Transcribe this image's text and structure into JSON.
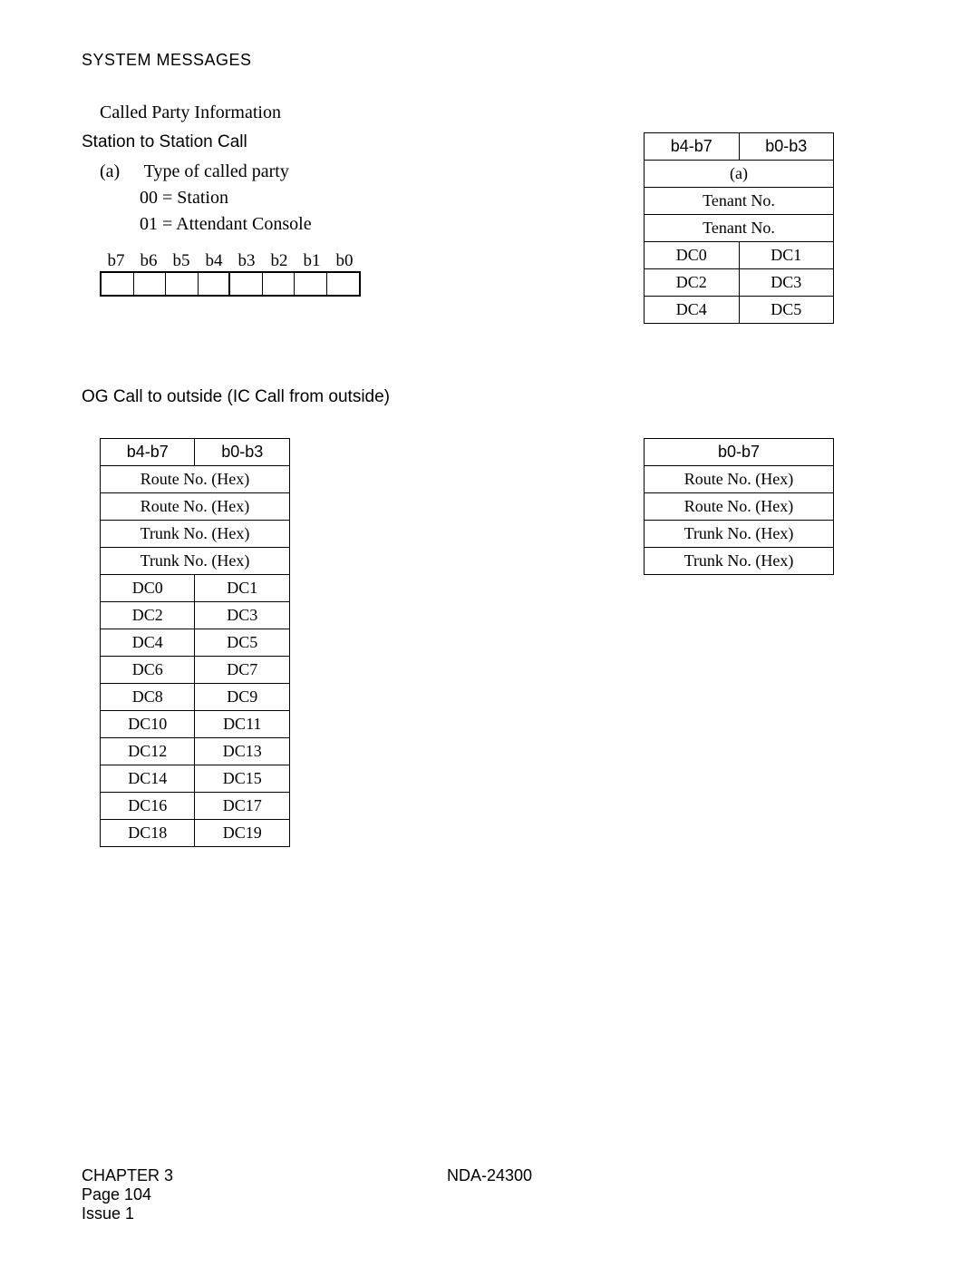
{
  "header": "SYSTEM MESSAGES",
  "called_party_info": "Called Party Information",
  "station_call": "Station to Station Call",
  "item_a": {
    "marker": "(a)",
    "text": "Type of called party"
  },
  "option_00": "00 = Station",
  "option_01": "01 = Attendant Console",
  "bits": [
    "b7",
    "b6",
    "b5",
    "b4",
    "b3",
    "b2",
    "b1",
    "b0"
  ],
  "table_a": {
    "hdr_l": "b4-b7",
    "hdr_r": "b0-b3",
    "rows_full": [
      "(a)",
      "Tenant No.",
      "Tenant No."
    ],
    "rows_split": [
      [
        "DC0",
        "DC1"
      ],
      [
        "DC2",
        "DC3"
      ],
      [
        "DC4",
        "DC5"
      ]
    ]
  },
  "og_title": "OG Call to outside (IC Call from outside)",
  "table_og_left": {
    "hdr_l": "b4-b7",
    "hdr_r": "b0-b3",
    "rows_full": [
      "Route No. (Hex)",
      "Route No. (Hex)",
      "Trunk No. (Hex)",
      "Trunk No. (Hex)"
    ],
    "rows_split": [
      [
        "DC0",
        "DC1"
      ],
      [
        "DC2",
        "DC3"
      ],
      [
        "DC4",
        "DC5"
      ],
      [
        "DC6",
        "DC7"
      ],
      [
        "DC8",
        "DC9"
      ],
      [
        "DC10",
        "DC11"
      ],
      [
        "DC12",
        "DC13"
      ],
      [
        "DC14",
        "DC15"
      ],
      [
        "DC16",
        "DC17"
      ],
      [
        "DC18",
        "DC19"
      ]
    ]
  },
  "table_og_right": {
    "hdr": "b0-b7",
    "rows": [
      "Route No. (Hex)",
      "Route No. (Hex)",
      "Trunk No. (Hex)",
      "Trunk No. (Hex)"
    ]
  },
  "footer": {
    "chapter": "CHAPTER 3",
    "page": "Page 104",
    "issue": "Issue 1",
    "doc": "NDA-24300"
  }
}
